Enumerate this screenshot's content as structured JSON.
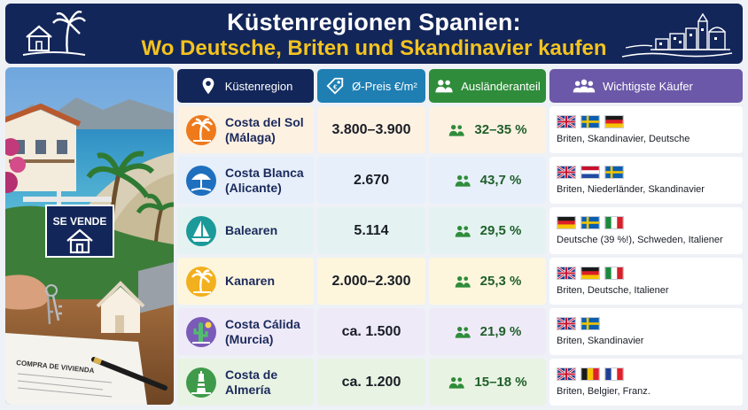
{
  "header": {
    "title": "Küstenregionen Spanien:",
    "subtitle": "Wo Deutsche, Briten und Skandinavier kaufen"
  },
  "photo": {
    "sign_text": "SE VENDE",
    "document_text": "COMPRA DE VIVIENDA"
  },
  "columns": {
    "region": "Küstenregion",
    "preis": "Ø-Preis €/m²",
    "anteil": "Ausländeranteil",
    "kaeufer": "Wichtigste Käufer"
  },
  "colors": {
    "navy": "#13265a",
    "gold": "#f3c31f",
    "price_header": "#1f7fb3",
    "share_header": "#2f8c3a",
    "buyer_header": "#6b58a8"
  },
  "rows": [
    {
      "region_line1": "Costa del Sol",
      "region_line2": "(Málaga)",
      "icon": "palm-tree-icon",
      "icon_color": "#ee7a1c",
      "row_bg": "#fdf1e2",
      "preis": "3.800–3.900",
      "anteil": "32–35 %",
      "flags": [
        "uk",
        "se",
        "de"
      ],
      "buyers": "Briten, Skandinavier, Deutsche"
    },
    {
      "region_line1": "Costa Blanca",
      "region_line2": "(Alicante)",
      "icon": "beach-umbrella-icon",
      "icon_color": "#1f6fbf",
      "row_bg": "#e6effa",
      "preis": "2.670",
      "anteil": "43,7 %",
      "flags": [
        "uk",
        "nl",
        "se"
      ],
      "buyers": "Briten, Niederländer, Skandinavier"
    },
    {
      "region_line1": "Balearen",
      "region_line2": "",
      "icon": "sailboat-icon",
      "icon_color": "#1c9a9a",
      "row_bg": "#e4f3f1",
      "preis": "5.114",
      "anteil": "29,5 %",
      "flags": [
        "de",
        "se",
        "it"
      ],
      "buyers": "Deutsche (39 %!), Schweden, Italiener"
    },
    {
      "region_line1": "Kanaren",
      "region_line2": "",
      "icon": "palm-tree-icon",
      "icon_color": "#f2b01e",
      "row_bg": "#fdf6dd",
      "preis": "2.000–2.300",
      "anteil": "25,3 %",
      "flags": [
        "uk",
        "de",
        "it"
      ],
      "buyers": "Briten, Deutsche, Italiener"
    },
    {
      "region_line1": "Costa Cálida",
      "region_line2": "(Murcia)",
      "icon": "cactus-sun-icon",
      "icon_color": "#7a5bb8",
      "row_bg": "#efeaf8",
      "preis": "ca. 1.500",
      "anteil": "21,9 %",
      "flags": [
        "uk",
        "se"
      ],
      "buyers": "Briten, Skandinavier"
    },
    {
      "region_line1": "Costa de Almería",
      "region_line2": "",
      "icon": "lighthouse-icon",
      "icon_color": "#3f9a4a",
      "row_bg": "#e8f3e3",
      "preis": "ca. 1.200",
      "anteil": "15–18 %",
      "flags": [
        "uk",
        "be",
        "fr"
      ],
      "buyers": "Briten, Belgier, Franz."
    }
  ]
}
